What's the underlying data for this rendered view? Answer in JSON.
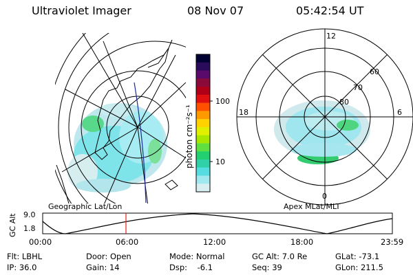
{
  "header": {
    "instrument": "Ultraviolet Imager",
    "date": "08 Nov 07",
    "time": "05:42:54 UT"
  },
  "geo_map": {
    "label": "Geographic Lat/Lon"
  },
  "colorbar": {
    "unit_label": "photon cm⁻²s⁻¹",
    "ticks": [
      "100",
      "10"
    ],
    "colors": [
      "#000033",
      "#2a0a5a",
      "#5a0a6a",
      "#8a0a3a",
      "#b00018",
      "#e01010",
      "#ff5000",
      "#ff9900",
      "#ffd200",
      "#e0f000",
      "#a8e800",
      "#60e040",
      "#22d070",
      "#30d0a8",
      "#55dce0",
      "#9fe8f0",
      "#d8eef0"
    ]
  },
  "polar_plot": {
    "label": "Apex MLat/MLT",
    "mlt_labels": {
      "top": "12",
      "left": "18",
      "right": "6",
      "bottom": "0"
    },
    "lat_labels": [
      "60",
      "70",
      "80"
    ]
  },
  "alt_plot": {
    "ylabel": "GC Alt",
    "yticks": [
      "9.0",
      "1.8"
    ],
    "xticks": [
      "00:00",
      "06:00",
      "12:00",
      "18:00",
      "23:59"
    ],
    "current_time_fraction": 0.2382
  },
  "info": {
    "flt": "Flt: LBHL",
    "ip": "IP: 36.0",
    "door": "Door: Open",
    "gain": "Gain: 14",
    "mode": "Mode: Normal",
    "dsp": "Dsp:    -6.1",
    "gcalt": "GC Alt: 7.0 Re",
    "seq": "Seq: 39",
    "glat": "GLat: -73.1",
    "glon": "GLon: 211.5"
  }
}
